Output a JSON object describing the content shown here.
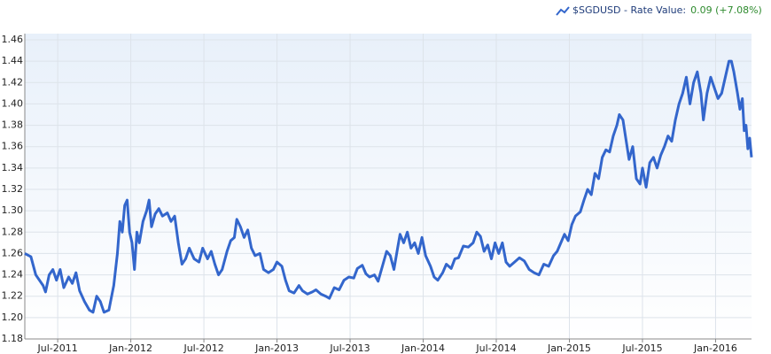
{
  "chart_data": {
    "type": "line",
    "legend_label": "$SGDUSD - Rate Value:",
    "legend_value": "0.09 (+7.08%)",
    "xlim": [
      3.3,
      62.95
    ],
    "xticks": [
      {
        "value": 6,
        "label": "Jul-2011"
      },
      {
        "value": 12,
        "label": "Jan-2012"
      },
      {
        "value": 18,
        "label": "Jul-2012"
      },
      {
        "value": 24,
        "label": "Jan-2013"
      },
      {
        "value": 30,
        "label": "Jul-2013"
      },
      {
        "value": 36,
        "label": "Jan-2014"
      },
      {
        "value": 42,
        "label": "Jul-2014"
      },
      {
        "value": 48,
        "label": "Jan-2015"
      },
      {
        "value": 54,
        "label": "Jul-2015"
      },
      {
        "value": 60,
        "label": "Jan-2016"
      }
    ],
    "ylim": [
      1.18,
      1.46
    ],
    "yticks": [
      {
        "value": 1.18,
        "label": "1.18"
      },
      {
        "value": 1.2,
        "label": "1.20"
      },
      {
        "value": 1.22,
        "label": "1.22"
      },
      {
        "value": 1.24,
        "label": "1.24"
      },
      {
        "value": 1.26,
        "label": "1.26"
      },
      {
        "value": 1.28,
        "label": "1.28"
      },
      {
        "value": 1.3,
        "label": "1.30"
      },
      {
        "value": 1.32,
        "label": "1.32"
      },
      {
        "value": 1.34,
        "label": "1.34"
      },
      {
        "value": 1.36,
        "label": "1.36"
      },
      {
        "value": 1.38,
        "label": "1.38"
      },
      {
        "value": 1.4,
        "label": "1.40"
      },
      {
        "value": 1.42,
        "label": "1.42"
      },
      {
        "value": 1.44,
        "label": "1.44"
      },
      {
        "value": 1.46,
        "label": "1.46"
      }
    ],
    "grid": true,
    "x": [
      3.3,
      3.8,
      4.2,
      4.8,
      5.0,
      5.3,
      5.6,
      5.9,
      6.2,
      6.5,
      6.9,
      7.2,
      7.5,
      7.8,
      8.2,
      8.6,
      8.9,
      9.2,
      9.5,
      9.8,
      10.2,
      10.6,
      10.9,
      11.1,
      11.3,
      11.5,
      11.7,
      11.9,
      12.1,
      12.3,
      12.5,
      12.7,
      13.0,
      13.3,
      13.5,
      13.7,
      14.0,
      14.3,
      14.6,
      15.0,
      15.3,
      15.6,
      15.9,
      16.2,
      16.5,
      16.8,
      17.2,
      17.6,
      17.9,
      18.3,
      18.6,
      18.9,
      19.2,
      19.5,
      19.9,
      20.2,
      20.5,
      20.7,
      21.0,
      21.3,
      21.6,
      21.9,
      22.2,
      22.6,
      22.9,
      23.3,
      23.7,
      24.0,
      24.4,
      24.7,
      25.0,
      25.4,
      25.8,
      26.1,
      26.5,
      26.9,
      27.2,
      27.6,
      28.0,
      28.3,
      28.7,
      29.1,
      29.5,
      29.9,
      30.3,
      30.6,
      31.0,
      31.3,
      31.6,
      32.0,
      32.3,
      32.7,
      33.0,
      33.3,
      33.6,
      33.9,
      34.1,
      34.4,
      34.7,
      35.0,
      35.3,
      35.6,
      35.9,
      36.2,
      36.6,
      36.9,
      37.2,
      37.6,
      37.9,
      38.3,
      38.6,
      38.9,
      39.3,
      39.7,
      40.1,
      40.4,
      40.7,
      41.0,
      41.3,
      41.6,
      41.9,
      42.2,
      42.5,
      42.8,
      43.1,
      43.5,
      43.9,
      44.3,
      44.7,
      45.1,
      45.5,
      45.9,
      46.3,
      46.7,
      47.0,
      47.3,
      47.6,
      47.9,
      48.2,
      48.5,
      48.9,
      49.2,
      49.5,
      49.8,
      50.1,
      50.4,
      50.7,
      51.0,
      51.3,
      51.6,
      51.9,
      52.1,
      52.4,
      52.6,
      52.9,
      53.2,
      53.5,
      53.8,
      54.0,
      54.3,
      54.6,
      54.9,
      55.2,
      55.5,
      55.8,
      56.1,
      56.4,
      56.7,
      57.0,
      57.3,
      57.6,
      57.9,
      58.2,
      58.5,
      58.8,
      59.0,
      59.3,
      59.6,
      59.9,
      60.2,
      60.5,
      60.8,
      61.1,
      61.3,
      61.5,
      61.8,
      62.0,
      62.2,
      62.35,
      62.5,
      62.65,
      62.8,
      62.95
    ],
    "series": [
      {
        "name": "$SGDUSD",
        "color": "#3366cc",
        "values": [
          1.26,
          1.257,
          1.24,
          1.23,
          1.224,
          1.24,
          1.245,
          1.235,
          1.245,
          1.228,
          1.238,
          1.232,
          1.242,
          1.225,
          1.215,
          1.207,
          1.205,
          1.22,
          1.215,
          1.205,
          1.207,
          1.23,
          1.26,
          1.29,
          1.28,
          1.305,
          1.31,
          1.28,
          1.27,
          1.245,
          1.28,
          1.27,
          1.29,
          1.3,
          1.31,
          1.285,
          1.297,
          1.302,
          1.295,
          1.298,
          1.29,
          1.295,
          1.27,
          1.25,
          1.255,
          1.265,
          1.255,
          1.252,
          1.265,
          1.255,
          1.262,
          1.25,
          1.24,
          1.245,
          1.262,
          1.272,
          1.275,
          1.292,
          1.285,
          1.275,
          1.282,
          1.265,
          1.258,
          1.26,
          1.245,
          1.242,
          1.245,
          1.252,
          1.248,
          1.235,
          1.225,
          1.223,
          1.23,
          1.225,
          1.222,
          1.224,
          1.226,
          1.222,
          1.22,
          1.218,
          1.228,
          1.226,
          1.235,
          1.238,
          1.237,
          1.246,
          1.249,
          1.241,
          1.238,
          1.24,
          1.234,
          1.25,
          1.262,
          1.258,
          1.245,
          1.265,
          1.278,
          1.27,
          1.28,
          1.265,
          1.27,
          1.26,
          1.275,
          1.258,
          1.248,
          1.238,
          1.235,
          1.242,
          1.25,
          1.246,
          1.255,
          1.256,
          1.267,
          1.266,
          1.27,
          1.28,
          1.276,
          1.262,
          1.268,
          1.255,
          1.27,
          1.26,
          1.27,
          1.252,
          1.248,
          1.252,
          1.256,
          1.253,
          1.245,
          1.242,
          1.24,
          1.25,
          1.248,
          1.258,
          1.262,
          1.27,
          1.278,
          1.272,
          1.287,
          1.295,
          1.299,
          1.31,
          1.32,
          1.315,
          1.335,
          1.33,
          1.35,
          1.357,
          1.355,
          1.37,
          1.38,
          1.39,
          1.385,
          1.37,
          1.348,
          1.36,
          1.33,
          1.325,
          1.34,
          1.322,
          1.345,
          1.35,
          1.34,
          1.352,
          1.36,
          1.37,
          1.365,
          1.385,
          1.4,
          1.41,
          1.425,
          1.4,
          1.42,
          1.43,
          1.41,
          1.385,
          1.41,
          1.425,
          1.415,
          1.405,
          1.41,
          1.425,
          1.44,
          1.44,
          1.43,
          1.41,
          1.395,
          1.405,
          1.375,
          1.38,
          1.358,
          1.368,
          1.35
        ]
      }
    ]
  }
}
